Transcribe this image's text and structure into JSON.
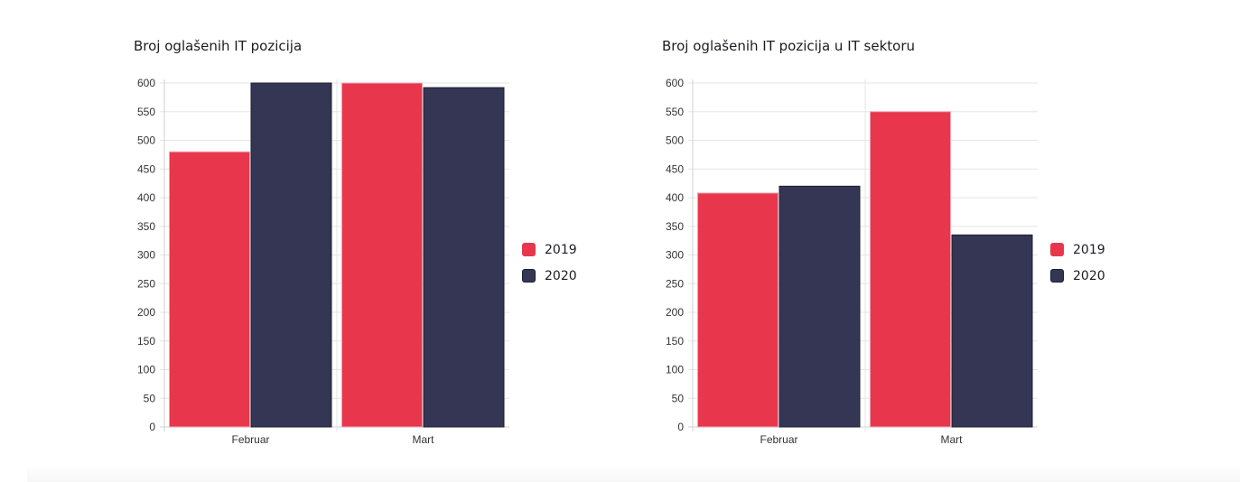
{
  "colors": {
    "series_2019": "#e8364c",
    "series_2020": "#343654",
    "grid": "#e6e6e6",
    "axis": "#d0d0d0"
  },
  "chart_data": [
    {
      "type": "bar",
      "title": "Broj oglašenih IT pozicija",
      "categories": [
        "Februar",
        "Mart"
      ],
      "series": [
        {
          "name": "2019",
          "values": [
            480,
            600
          ]
        },
        {
          "name": "2020",
          "values": [
            600,
            592
          ]
        }
      ],
      "xlabel": "",
      "ylabel": "",
      "ylim": [
        0,
        600
      ],
      "yticks": [
        "0",
        "50",
        "100",
        "150",
        "200",
        "250",
        "300",
        "350",
        "400",
        "450",
        "500",
        "550",
        "600"
      ],
      "grid": true,
      "legend": "right"
    },
    {
      "type": "bar",
      "title": "Broj oglašenih IT pozicija u IT sektoru",
      "categories": [
        "Februar",
        "Mart"
      ],
      "series": [
        {
          "name": "2019",
          "values": [
            408,
            550
          ]
        },
        {
          "name": "2020",
          "values": [
            420,
            335
          ]
        }
      ],
      "xlabel": "",
      "ylabel": "",
      "ylim": [
        0,
        600
      ],
      "yticks": [
        "0",
        "50",
        "100",
        "150",
        "200",
        "250",
        "300",
        "350",
        "400",
        "450",
        "500",
        "550",
        "600"
      ],
      "grid": true,
      "legend": "right"
    }
  ]
}
